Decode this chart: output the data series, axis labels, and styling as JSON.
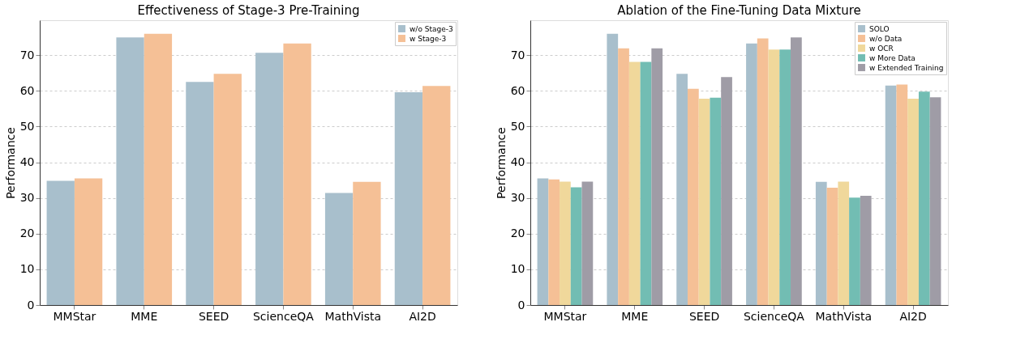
{
  "chart_data": [
    {
      "type": "bar",
      "title": "Effectiveness of Stage-3 Pre-Training",
      "ylabel": "Performance",
      "categories": [
        "MMStar",
        "MME",
        "SEED",
        "ScienceQA",
        "MathVista",
        "AI2D"
      ],
      "series": [
        {
          "name": "w/o Stage-3",
          "color": "#a8bfcc",
          "values": [
            34.8,
            75.0,
            62.5,
            70.7,
            31.4,
            59.6
          ]
        },
        {
          "name": "w Stage-3",
          "color": "#f5c096",
          "values": [
            35.5,
            76.0,
            64.8,
            73.3,
            34.5,
            61.4
          ]
        }
      ],
      "ylim": [
        0,
        79.8
      ],
      "yticks": [
        0,
        10,
        20,
        30,
        40,
        50,
        60,
        70
      ],
      "grid": "y",
      "legend": "top right"
    },
    {
      "type": "bar",
      "title": "Ablation of the Fine-Tuning Data Mixture",
      "ylabel": "Performance",
      "categories": [
        "MMStar",
        "MME",
        "SEED",
        "ScienceQA",
        "MathVista",
        "AI2D"
      ],
      "series": [
        {
          "name": "SOLO",
          "color": "#a8bfcc",
          "values": [
            35.5,
            76.0,
            64.8,
            73.3,
            34.5,
            61.5
          ]
        },
        {
          "name": "w/o Data",
          "color": "#f5c096",
          "values": [
            35.2,
            71.9,
            60.6,
            74.7,
            32.9,
            61.8
          ]
        },
        {
          "name": "w OCR",
          "color": "#f0d89b",
          "values": [
            34.6,
            68.1,
            57.8,
            71.6,
            34.6,
            57.8
          ]
        },
        {
          "name": "w More Data",
          "color": "#72bdb3",
          "values": [
            33.0,
            68.1,
            58.1,
            71.6,
            30.1,
            59.8
          ]
        },
        {
          "name": "w Extended Training",
          "color": "#9f9ca6",
          "values": [
            34.6,
            71.9,
            63.9,
            75.0,
            30.6,
            58.2
          ]
        }
      ],
      "ylim": [
        0,
        79.8
      ],
      "yticks": [
        0,
        10,
        20,
        30,
        40,
        50,
        60,
        70
      ],
      "grid": "y",
      "legend": "top right"
    }
  ]
}
